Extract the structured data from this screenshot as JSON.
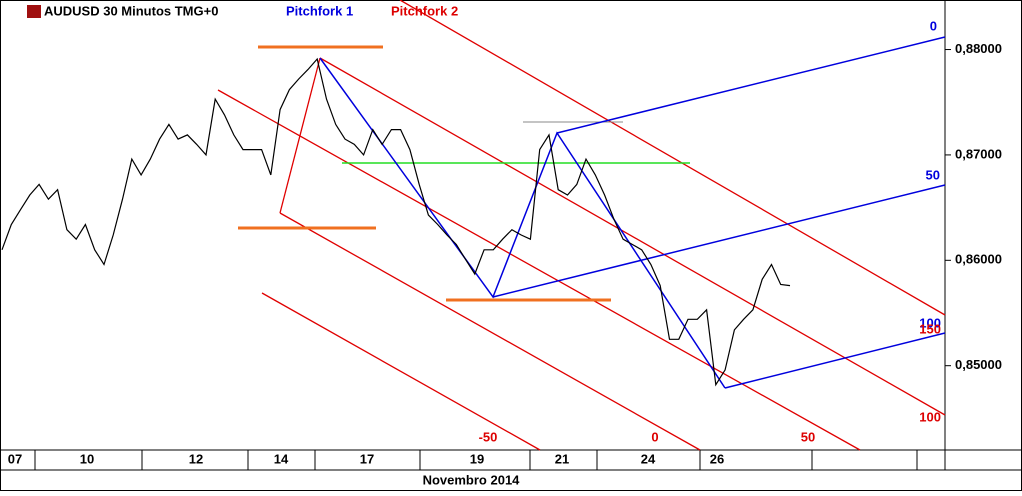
{
  "chart_data": {
    "type": "line",
    "title": "AUDUSD 30 Minutos TMG+0",
    "indicators": [
      "Pitchfork 1",
      "Pitchfork 2"
    ],
    "x_labels": [
      "07",
      "10",
      "12",
      "14",
      "17",
      "19",
      "21",
      "24",
      "26"
    ],
    "x_title": "Novembro 2014",
    "series": [
      {
        "name": "AUDUSD",
        "color": "#000000",
        "values": [
          0.861,
          0.8634,
          0.8648,
          0.8662,
          0.8672,
          0.8658,
          0.8667,
          0.8629,
          0.862,
          0.8634,
          0.861,
          0.8596,
          0.8624,
          0.8658,
          0.8696,
          0.8681,
          0.8696,
          0.8715,
          0.8729,
          0.8715,
          0.8719,
          0.871,
          0.87,
          0.8753,
          0.8738,
          0.8719,
          0.8705,
          0.8705,
          0.8705,
          0.8681,
          0.8743,
          0.8762,
          0.8772,
          0.8781,
          0.8791,
          0.8753,
          0.8729,
          0.8715,
          0.871,
          0.87,
          0.8724,
          0.871,
          0.8724,
          0.8724,
          0.8705,
          0.8672,
          0.8643,
          0.8634,
          0.8624,
          0.8615,
          0.8601,
          0.8587,
          0.861,
          0.861,
          0.862,
          0.8629,
          0.8624,
          0.862,
          0.8705,
          0.8719,
          0.8667,
          0.8662,
          0.8672,
          0.8696,
          0.8681,
          0.8662,
          0.8639,
          0.862,
          0.8615,
          0.861,
          0.8596,
          0.8576,
          0.8525,
          0.8525,
          0.8544,
          0.8544,
          0.8553,
          0.8482,
          0.8496,
          0.8534,
          0.8544,
          0.8553,
          0.8582,
          0.8596,
          0.8577,
          0.8576
        ]
      }
    ],
    "ylim": [
      0.842,
      0.8847
    ],
    "yticks": [
      {
        "value": 0.88,
        "label": "0,88000"
      },
      {
        "value": 0.87,
        "label": "0,87000"
      },
      {
        "value": 0.86,
        "label": "0,86000"
      },
      {
        "value": 0.85,
        "label": "0,85000"
      }
    ],
    "pitchfork_levels": {
      "blue": [
        "0",
        "50",
        "100"
      ],
      "red": [
        "150",
        "100",
        "-50",
        "0",
        "50"
      ]
    }
  }
}
